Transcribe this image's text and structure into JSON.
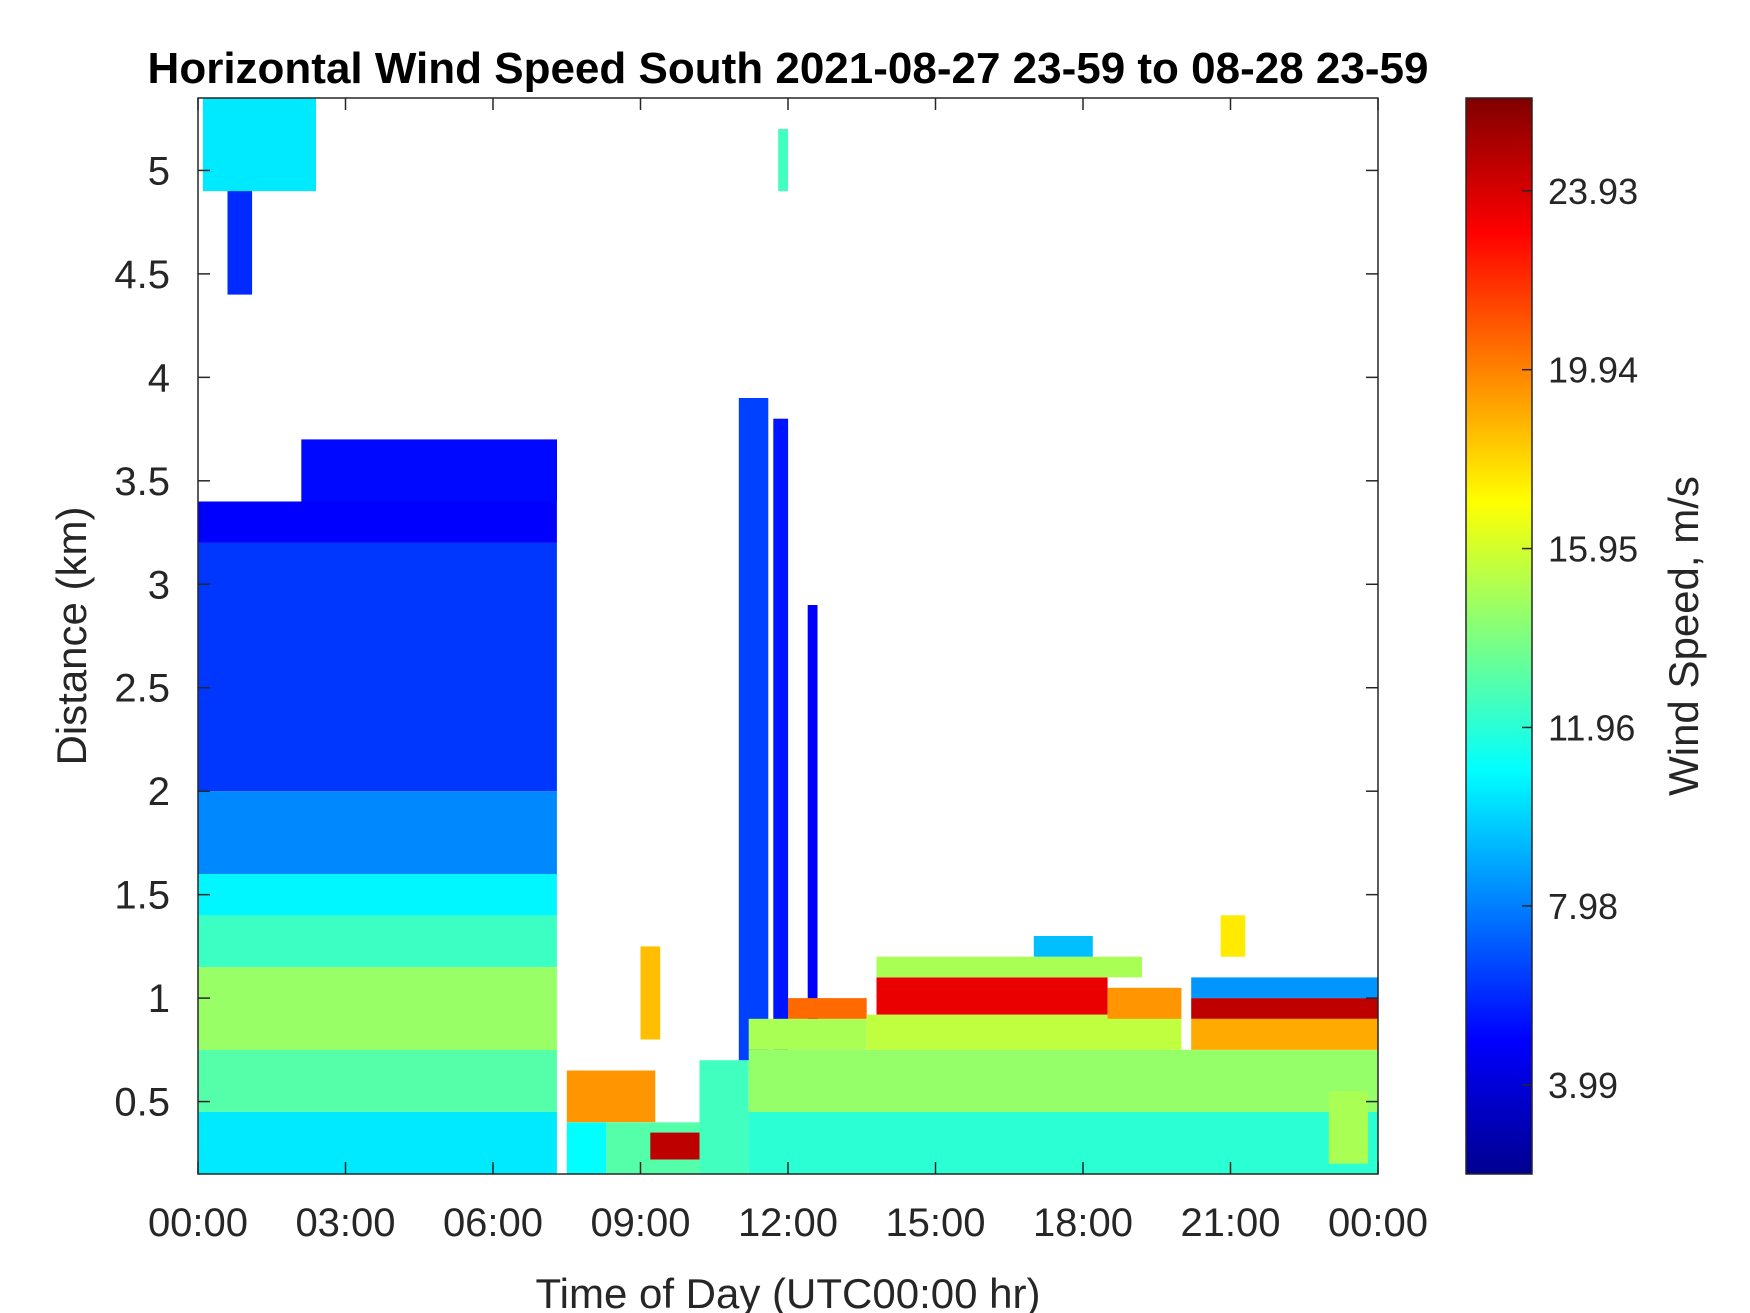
{
  "chart_data": {
    "type": "heatmap",
    "title": "Horizontal Wind Speed South 2021-08-27 23-59 to 08-28 23-59",
    "xlabel": "Time of Day (UTC00:00 hr)",
    "ylabel": "Distance (km)",
    "colorbar_label": "Wind Speed, m/s",
    "x_ticks": [
      "00:00",
      "03:00",
      "06:00",
      "09:00",
      "12:00",
      "15:00",
      "18:00",
      "21:00",
      "00:00"
    ],
    "xlim_hours": [
      0,
      24
    ],
    "y_ticks": [
      "0.5",
      "1",
      "1.5",
      "2",
      "2.5",
      "3",
      "3.5",
      "4",
      "4.5",
      "5"
    ],
    "y_tick_values": [
      0.5,
      1,
      1.5,
      2,
      2.5,
      3,
      3.5,
      4,
      4.5,
      5
    ],
    "ylim": [
      0.15,
      5.35
    ],
    "colorbar_ticks": [
      "3.99",
      "7.98",
      "11.96",
      "15.95",
      "19.94",
      "23.93"
    ],
    "colorbar_tick_values": [
      3.99,
      7.98,
      11.96,
      15.95,
      19.94,
      23.93
    ],
    "clim": [
      2.0,
      26.0
    ],
    "colormap": "jet",
    "grid": false,
    "regions": [
      {
        "t": [
          0.0,
          7.3
        ],
        "z": [
          0.15,
          0.45
        ],
        "v": 10.5
      },
      {
        "t": [
          0.0,
          7.3
        ],
        "z": [
          0.45,
          0.75
        ],
        "v": 13.0
      },
      {
        "t": [
          0.0,
          7.3
        ],
        "z": [
          0.75,
          1.15
        ],
        "v": 14.6
      },
      {
        "t": [
          0.0,
          7.3
        ],
        "z": [
          1.15,
          1.4
        ],
        "v": 12.4
      },
      {
        "t": [
          0.0,
          7.3
        ],
        "z": [
          1.4,
          1.6
        ],
        "v": 10.8
      },
      {
        "t": [
          0.0,
          7.3
        ],
        "z": [
          1.6,
          2.0
        ],
        "v": 8.2
      },
      {
        "t": [
          0.0,
          7.3
        ],
        "z": [
          2.0,
          3.2
        ],
        "v": 6.3
      },
      {
        "t": [
          0.0,
          7.3
        ],
        "z": [
          3.2,
          3.4
        ],
        "v": 5.0
      },
      {
        "t": [
          2.1,
          7.3
        ],
        "z": [
          3.4,
          3.7
        ],
        "v": 5.2
      },
      {
        "t": [
          0.1,
          2.4
        ],
        "z": [
          4.9,
          5.35
        ],
        "v": 10.5
      },
      {
        "t": [
          0.6,
          1.1
        ],
        "z": [
          4.4,
          4.9
        ],
        "v": 6.0
      },
      {
        "t": [
          7.5,
          8.3
        ],
        "z": [
          0.15,
          0.4
        ],
        "v": 11.0
      },
      {
        "t": [
          7.5,
          9.3
        ],
        "z": [
          0.4,
          0.65
        ],
        "v": 19.5
      },
      {
        "t": [
          8.3,
          10.2
        ],
        "z": [
          0.15,
          0.4
        ],
        "v": 13.0
      },
      {
        "t": [
          9.2,
          10.3
        ],
        "z": [
          0.22,
          0.35
        ],
        "v": 24.5
      },
      {
        "t": [
          9.0,
          9.4
        ],
        "z": [
          0.8,
          1.25
        ],
        "v": 18.5
      },
      {
        "t": [
          10.2,
          11.2
        ],
        "z": [
          0.15,
          0.7
        ],
        "v": 12.5
      },
      {
        "t": [
          11.0,
          11.6
        ],
        "z": [
          0.7,
          3.9
        ],
        "v": 6.5
      },
      {
        "t": [
          11.7,
          12.0
        ],
        "z": [
          0.7,
          3.8
        ],
        "v": 5.5
      },
      {
        "t": [
          11.8,
          12.0
        ],
        "z": [
          4.9,
          5.2
        ],
        "v": 12.5
      },
      {
        "t": [
          12.4,
          12.6
        ],
        "z": [
          0.8,
          2.9
        ],
        "v": 5.0
      },
      {
        "t": [
          11.2,
          24.0
        ],
        "z": [
          0.15,
          0.45
        ],
        "v": 12.0
      },
      {
        "t": [
          11.2,
          24.0
        ],
        "z": [
          0.45,
          0.75
        ],
        "v": 14.5
      },
      {
        "t": [
          11.2,
          13.6
        ],
        "z": [
          0.75,
          0.9
        ],
        "v": 15.0
      },
      {
        "t": [
          12.0,
          13.6
        ],
        "z": [
          0.9,
          1.0
        ],
        "v": 20.5
      },
      {
        "t": [
          13.6,
          20.0
        ],
        "z": [
          0.75,
          0.92
        ],
        "v": 15.5
      },
      {
        "t": [
          13.8,
          18.5
        ],
        "z": [
          0.92,
          1.1
        ],
        "v": 23.5
      },
      {
        "t": [
          13.8,
          19.2
        ],
        "z": [
          1.1,
          1.2
        ],
        "v": 15.0
      },
      {
        "t": [
          17.0,
          18.2
        ],
        "z": [
          1.2,
          1.3
        ],
        "v": 9.5
      },
      {
        "t": [
          18.5,
          20.0
        ],
        "z": [
          0.9,
          1.05
        ],
        "v": 19.5
      },
      {
        "t": [
          20.2,
          24.0
        ],
        "z": [
          0.75,
          0.9
        ],
        "v": 19.0
      },
      {
        "t": [
          20.2,
          24.0
        ],
        "z": [
          0.9,
          1.0
        ],
        "v": 24.5
      },
      {
        "t": [
          20.2,
          24.0
        ],
        "z": [
          1.0,
          1.1
        ],
        "v": 8.5
      },
      {
        "t": [
          20.8,
          21.3
        ],
        "z": [
          1.2,
          1.4
        ],
        "v": 17.5
      },
      {
        "t": [
          23.0,
          23.8
        ],
        "z": [
          0.2,
          0.55
        ],
        "v": 15.0
      }
    ]
  }
}
